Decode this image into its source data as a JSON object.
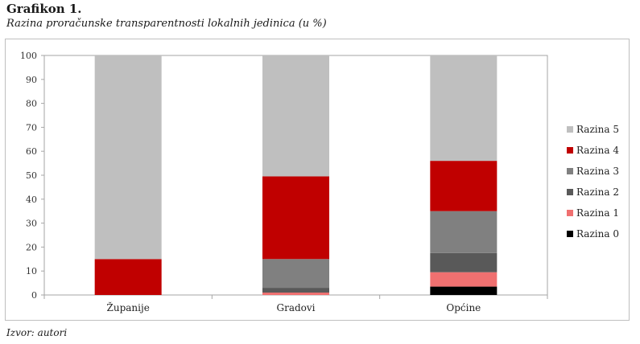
{
  "header": {
    "title": "Grafikon 1.",
    "subtitle": "Razina proračunske transparentnosti lokalnih jedinica (u %)"
  },
  "footer": {
    "source": "Izvor: autori"
  },
  "chart_data": {
    "type": "bar",
    "stacked": true,
    "categories": [
      "Županije",
      "Gradovi",
      "Općine"
    ],
    "ylim": [
      0,
      100
    ],
    "yticks": [
      0,
      10,
      20,
      30,
      40,
      50,
      60,
      70,
      80,
      90,
      100
    ],
    "grid": false,
    "legend_position": "right",
    "series": [
      {
        "name": "Razina 0",
        "color": "#000000",
        "values": [
          0,
          0,
          3.5
        ]
      },
      {
        "name": "Razina 1",
        "color": "#f07070",
        "values": [
          0,
          1,
          6
        ]
      },
      {
        "name": "Razina 2",
        "color": "#595959",
        "values": [
          0,
          2,
          8
        ]
      },
      {
        "name": "Razina 3",
        "color": "#808080",
        "values": [
          0,
          12,
          17.5
        ]
      },
      {
        "name": "Razina 4",
        "color": "#c00000",
        "values": [
          15,
          34.5,
          21
        ]
      },
      {
        "name": "Razina 5",
        "color": "#bfbfbf",
        "values": [
          85,
          50.5,
          44
        ]
      }
    ]
  }
}
